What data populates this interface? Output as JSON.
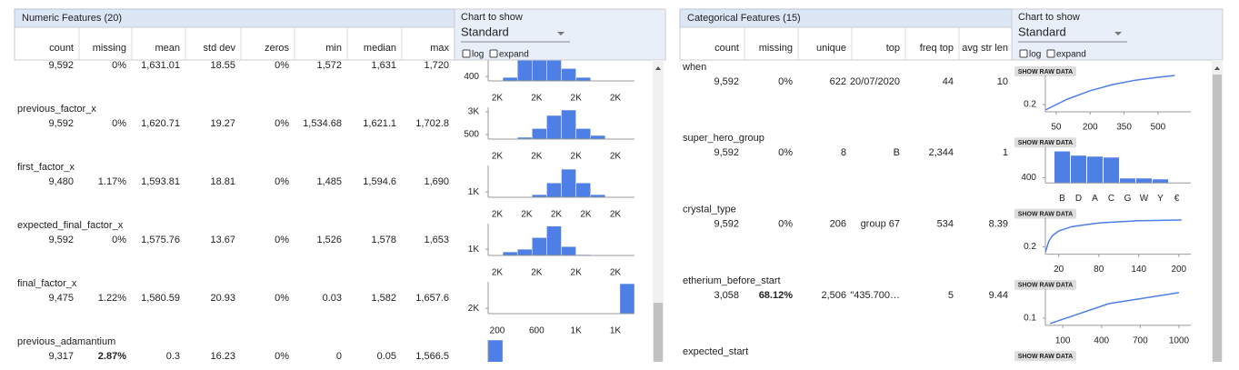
{
  "numeric": {
    "title": "Numeric Features (20)",
    "columns": [
      "count",
      "missing",
      "mean",
      "std dev",
      "zeros",
      "min",
      "median",
      "max"
    ],
    "chart_label": "Chart to show",
    "chart_option": "Standard",
    "toggles": [
      "log",
      "expand"
    ],
    "rows": [
      {
        "values": [
          "9,592",
          "0%",
          "1,631.01",
          "18.55",
          "0%",
          "1,572",
          "1,631",
          "1,720"
        ],
        "chart": {
          "type": "histogram",
          "values": [
            0,
            320,
            3000,
            3000,
            3000,
            1120,
            320,
            0,
            0,
            0
          ],
          "ylim": [
            0,
            2880
          ],
          "yticks": [
            400
          ],
          "xtick_labels": [
            "2K",
            "2K",
            "2K",
            "2K"
          ]
        }
      },
      {
        "name": "previous_factor_x",
        "values": [
          "9,592",
          "0%",
          "1,620.71",
          "19.27",
          "0%",
          "1,534.68",
          "1,621.1",
          "1,702.8"
        ],
        "chart": {
          "type": "histogram",
          "values": [
            0,
            0,
            200,
            1160,
            2600,
            3200,
            1160,
            400,
            0,
            0
          ],
          "ylim": [
            0,
            3500
          ],
          "yticks": [
            {
              "value": 3000,
              "label": "3K"
            },
            500
          ],
          "xtick_labels": [
            "2K",
            "2K",
            "2K",
            "2K"
          ]
        }
      },
      {
        "name": "first_factor_x",
        "values": [
          "9,480",
          "1.17%",
          "1,593.81",
          "18.81",
          "0%",
          "1,485",
          "1,594.6",
          "1,690"
        ],
        "chart": {
          "type": "histogram",
          "values": [
            0,
            0,
            0,
            500,
            2700,
            5300,
            2700,
            500,
            0,
            0
          ],
          "ylim": [
            0,
            6000
          ],
          "yticks": [
            {
              "value": 1000,
              "label": "1K"
            }
          ],
          "xtick_labels": [
            "2K",
            "2K",
            "2K",
            "2K",
            "2K"
          ]
        }
      },
      {
        "name": "expected_final_factor_x",
        "values": [
          "9,592",
          "0%",
          "1,575.76",
          "13.67",
          "0%",
          "1,526",
          "1,578",
          "1,653"
        ],
        "chart": {
          "type": "histogram",
          "values": [
            0,
            570,
            1000,
            2860,
            4700,
            1430,
            140,
            0,
            0,
            0
          ],
          "ylim": [
            0,
            5100
          ],
          "yticks": [
            {
              "value": 1000,
              "label": "1K"
            }
          ],
          "xtick_labels": [
            "2K",
            "2K",
            "2K",
            "2K"
          ]
        }
      },
      {
        "name": "final_factor_x",
        "values": [
          "9,475",
          "1.22%",
          "1,580.59",
          "20.93",
          "0%",
          "0.03",
          "1,582",
          "1,657.6"
        ],
        "chart": {
          "type": "histogram",
          "values": [
            0,
            0,
            0,
            0,
            0,
            0,
            0,
            0,
            0,
            11300
          ],
          "ylim": [
            0,
            12000
          ],
          "yticks": [
            {
              "value": 2000,
              "label": "2K"
            }
          ],
          "xtick_labels": [
            "200",
            "600",
            "1K",
            "1K"
          ]
        }
      },
      {
        "name": "previous_adamantium",
        "missing_alert": true,
        "values": [
          "9,317",
          "2.87%",
          "0.3",
          "16.23",
          "0%",
          "0",
          "0.05",
          "1,566.5"
        ],
        "chart": {
          "type": "histogram",
          "values": [
            10000,
            0,
            0,
            0,
            0,
            0,
            0,
            0,
            0,
            0
          ],
          "ylim": [
            0,
            10000
          ]
        }
      }
    ]
  },
  "categorical": {
    "title": "Categorical Features (15)",
    "columns": [
      "count",
      "missing",
      "unique",
      "top",
      "freq top",
      "avg str len"
    ],
    "chart_label": "Chart to show",
    "chart_option": "Standard",
    "toggles": [
      "log",
      "expand"
    ],
    "raw_button": "SHOW RAW DATA",
    "rows": [
      {
        "name": "when",
        "values": [
          "9,592",
          "0%",
          "622",
          "20/07/2020",
          "44",
          "10"
        ],
        "chart": {
          "type": "line",
          "x": [
            2,
            100,
            200,
            300,
            400,
            500,
            574
          ],
          "values": [
            0.05,
            0.35,
            0.58,
            0.75,
            0.87,
            0.95,
            1.0
          ],
          "xlim": [
            2,
            645
          ],
          "ylim": [
            0,
            1
          ],
          "yticks": [
            0.2
          ],
          "xticks": [
            50,
            200,
            350,
            500
          ]
        }
      },
      {
        "name": "super_hero_group",
        "values": [
          "9,592",
          "0%",
          "8",
          "B",
          "2,344",
          "1"
        ],
        "chart": {
          "type": "bar",
          "categories": [
            "B",
            "D",
            "A",
            "C",
            "G",
            "W",
            "Y",
            "€"
          ],
          "values": [
            2344,
            2030,
            1960,
            1890,
            340,
            340,
            270,
            0
          ],
          "ylim": [
            0,
            2700
          ],
          "yticks": [
            400
          ]
        }
      },
      {
        "name": "crystal_type",
        "values": [
          "9,592",
          "0%",
          "206",
          "group 67",
          "534",
          "8.39"
        ],
        "chart": {
          "type": "line",
          "x": [
            0,
            5,
            10,
            20,
            40,
            80,
            140,
            204
          ],
          "values": [
            0.05,
            0.35,
            0.5,
            0.64,
            0.76,
            0.86,
            0.92,
            0.94
          ],
          "xlim": [
            0,
            218
          ],
          "ylim": [
            0,
            1
          ],
          "yticks": [
            0.2
          ],
          "xticks": [
            20,
            80,
            140,
            200
          ]
        }
      },
      {
        "name": "etherium_before_start",
        "missing_alert": true,
        "values": [
          "3,058",
          "68.12%",
          "2,506",
          "\"435.700…",
          "5",
          "9.44"
        ],
        "chart": {
          "type": "line",
          "x": [
            1,
            460,
            1000
          ],
          "values": [
            0.025,
            0.3,
            0.45
          ],
          "xlim": [
            -35,
            1092
          ],
          "ylim": [
            0,
            0.5
          ],
          "yticks": [
            0.1
          ],
          "xticks": [
            100,
            400,
            700,
            1000
          ]
        }
      },
      {
        "name": "expected_start"
      }
    ]
  }
}
